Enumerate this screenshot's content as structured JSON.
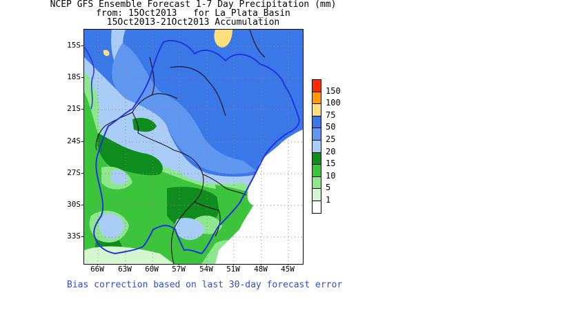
{
  "title": {
    "line1": "NCEP GFS Ensemble Forecast 1-7 Day Precipitation (mm)",
    "line2": "from: 15Oct2013   for La_Plata_Basin",
    "line3": "15Oct2013-21Oct2013 Accumulation"
  },
  "map": {
    "lat_labels": [
      "15S",
      "18S",
      "21S",
      "24S",
      "27S",
      "30S",
      "33S"
    ],
    "lon_labels": [
      "66W",
      "63W",
      "60W",
      "57W",
      "54W",
      "51W",
      "48W",
      "45W"
    ]
  },
  "legend": {
    "levels": [
      {
        "label": "150",
        "color": "#ff2a00"
      },
      {
        "label": "100",
        "color": "#ff9a00"
      },
      {
        "label": "75",
        "color": "#ffe07a"
      },
      {
        "label": "50",
        "color": "#3a78e8"
      },
      {
        "label": "25",
        "color": "#5f96f0"
      },
      {
        "label": "20",
        "color": "#a9cdf6"
      },
      {
        "label": "15",
        "color": "#0e8c1e"
      },
      {
        "label": "10",
        "color": "#3cc43c"
      },
      {
        "label": "5",
        "color": "#8ee68e"
      },
      {
        "label": "1",
        "color": "#d4f7d0"
      },
      {
        "label": "",
        "color": "#ffffff"
      }
    ]
  },
  "footer": "Bias correction based on last 30-day forecast error",
  "colors": {
    "basin_outline": "#2233dd",
    "borders": "#000000",
    "grid": "#888888"
  }
}
